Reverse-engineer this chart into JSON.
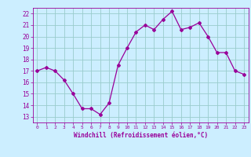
{
  "x": [
    0,
    1,
    2,
    3,
    4,
    5,
    6,
    7,
    8,
    9,
    10,
    11,
    12,
    13,
    14,
    15,
    16,
    17,
    18,
    19,
    20,
    21,
    22,
    23
  ],
  "y": [
    17.0,
    17.3,
    17.0,
    16.2,
    15.0,
    13.7,
    13.7,
    13.2,
    14.2,
    17.5,
    19.0,
    20.4,
    21.0,
    20.6,
    21.5,
    22.2,
    20.6,
    20.8,
    21.2,
    20.0,
    18.6,
    18.6,
    17.0,
    16.7
  ],
  "line_color": "#990099",
  "marker": "D",
  "marker_size": 2,
  "bg_color": "#cceeff",
  "grid_color": "#99cccc",
  "xlabel": "Windchill (Refroidissement éolien,°C)",
  "xlim": [
    -0.5,
    23.5
  ],
  "ylim": [
    12.5,
    22.5
  ],
  "yticks": [
    13,
    14,
    15,
    16,
    17,
    18,
    19,
    20,
    21,
    22
  ],
  "xticks": [
    0,
    1,
    2,
    3,
    4,
    5,
    6,
    7,
    8,
    9,
    10,
    11,
    12,
    13,
    14,
    15,
    16,
    17,
    18,
    19,
    20,
    21,
    22,
    23
  ]
}
